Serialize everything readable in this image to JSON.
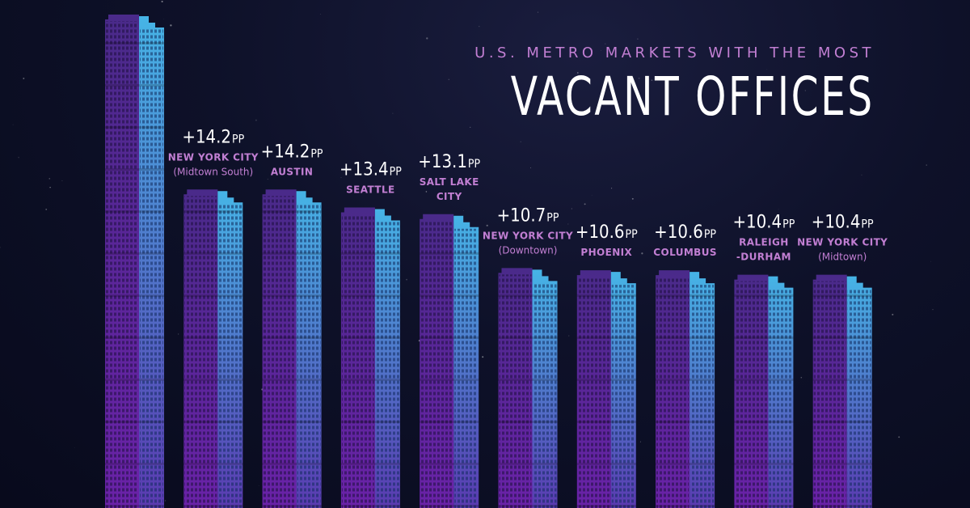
{
  "header": {
    "subtitle": "U.S. METRO MARKETS WITH THE MOST",
    "title": "VACANT OFFICES"
  },
  "colors": {
    "background": "#0e1129",
    "building_left": "#5a2a9a",
    "building_right": "#3fa3d8",
    "label": "#c27fd3",
    "value": "#ffffff"
  },
  "chart_data": {
    "type": "bar",
    "unit": "PP",
    "categories": [
      "",
      "NEW YORK CITY|(Midtown South)",
      "AUSTIN",
      "SEATTLE",
      "SALT LAKE|CITY",
      "NEW YORK CITY|(Downtown)",
      "PHOENIX",
      "COLUMBUS",
      "RALEIGH|-DURHAM",
      "NEW YORK CITY|(Midtown)"
    ],
    "labels": [
      "",
      "+14.2",
      "+14.2",
      "+13.4",
      "+13.1",
      "+10.7",
      "+10.6",
      "+10.6",
      "+10.4",
      "+10.4"
    ],
    "values": [
      22.0,
      14.2,
      14.2,
      13.4,
      13.1,
      10.7,
      10.6,
      10.6,
      10.4,
      10.4
    ],
    "ylim": [
      0,
      22
    ]
  }
}
